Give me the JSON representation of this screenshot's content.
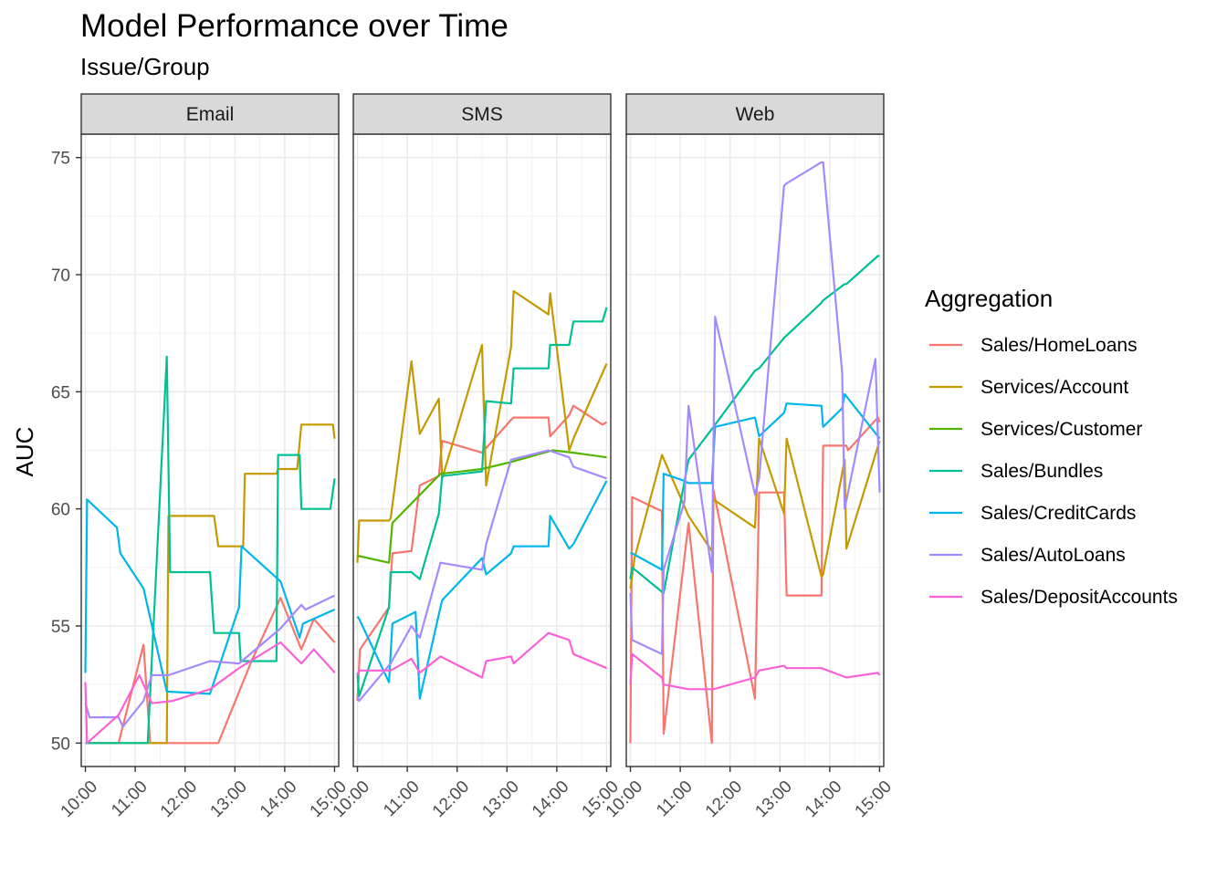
{
  "chart_data": {
    "type": "line",
    "title": "Model Performance over Time",
    "subtitle": "Issue/Group",
    "ylabel": "AUC",
    "xlabel": "",
    "ylim": [
      49,
      76
    ],
    "y_ticks": [
      50,
      55,
      60,
      65,
      70,
      75
    ],
    "x_range": [
      "09:55",
      "15:05"
    ],
    "x_ticks": [
      "10:00",
      "11:00",
      "12:00",
      "13:00",
      "14:00",
      "15:00"
    ],
    "grid": true,
    "legend": {
      "title": "Aggregation",
      "position": "right",
      "entries": [
        "Sales/HomeLoans",
        "Services/Account",
        "Services/Customer",
        "Sales/Bundles",
        "Sales/CreditCards",
        "Sales/AutoLoans",
        "Sales/DepositAccounts"
      ]
    },
    "colors": {
      "Sales/HomeLoans": "#F8766D",
      "Services/Account": "#C49A00",
      "Services/Customer": "#53B400",
      "Sales/Bundles": "#00C094",
      "Sales/CreditCards": "#00B6EB",
      "Sales/AutoLoans": "#A58AFF",
      "Sales/DepositAccounts": "#FB61D7"
    },
    "panels": [
      {
        "name": "Email",
        "series": [
          {
            "name": "Sales/HomeLoans",
            "x": [
              "10:00",
              "10:40",
              "11:10",
              "11:18",
              "11:50",
              "12:40",
              "13:20",
              "13:55",
              "14:20",
              "14:35",
              "15:00"
            ],
            "y": [
              50,
              50,
              54.2,
              50,
              50,
              50,
              53.5,
              56.2,
              54,
              55.3,
              54.3
            ]
          },
          {
            "name": "Services/Account",
            "x": [
              "10:00",
              "10:05",
              "11:25",
              "11:38",
              "11:40",
              "12:35",
              "12:40",
              "13:10",
              "13:12",
              "13:50",
              "13:52",
              "14:15",
              "14:20",
              "14:58",
              "15:00"
            ],
            "y": [
              50,
              50,
              50,
              50,
              59.7,
              59.7,
              58.4,
              58.4,
              61.5,
              61.5,
              61.7,
              61.7,
              63.6,
              63.6,
              63
            ]
          },
          {
            "name": "Sales/Bundles",
            "x": [
              "10:00",
              "11:15",
              "11:38",
              "11:42",
              "12:30",
              "12:35",
              "13:05",
              "13:07",
              "13:50",
              "13:52",
              "14:18",
              "14:20",
              "14:55",
              "15:00"
            ],
            "y": [
              50,
              50,
              66.5,
              57.3,
              57.3,
              54.7,
              54.7,
              53.5,
              53.5,
              62.3,
              62.3,
              60,
              60,
              61.3
            ]
          },
          {
            "name": "Sales/CreditCards",
            "x": [
              "10:00",
              "10:02",
              "10:38",
              "10:42",
              "11:10",
              "11:38",
              "12:30",
              "13:05",
              "13:08",
              "13:55",
              "14:18",
              "14:22",
              "15:00"
            ],
            "y": [
              53,
              60.4,
              59.2,
              58.1,
              56.6,
              52.2,
              52.1,
              55.8,
              58.4,
              56.9,
              54.5,
              55.1,
              55.7
            ]
          },
          {
            "name": "Sales/AutoLoans",
            "x": [
              "10:00",
              "10:05",
              "10:40",
              "10:45",
              "11:10",
              "11:20",
              "11:40",
              "12:30",
              "13:05",
              "13:55",
              "14:20",
              "14:25",
              "15:00"
            ],
            "y": [
              51.7,
              51.1,
              51.1,
              50.7,
              51.8,
              52.9,
              52.9,
              53.5,
              53.4,
              54.9,
              55.9,
              55.7,
              56.3
            ]
          },
          {
            "name": "Sales/DepositAccounts",
            "x": [
              "10:00",
              "10:02",
              "10:40",
              "11:05",
              "11:20",
              "11:45",
              "12:30",
              "13:05",
              "13:55",
              "14:20",
              "14:35",
              "14:58",
              "15:00"
            ],
            "y": [
              52.6,
              50,
              51.2,
              52.9,
              51.7,
              51.8,
              52.3,
              53.2,
              54.3,
              53.4,
              54,
              53.1,
              53
            ]
          }
        ]
      },
      {
        "name": "SMS",
        "series": [
          {
            "name": "Sales/HomeLoans",
            "x": [
              "10:00",
              "10:03",
              "10:38",
              "10:42",
              "11:05",
              "11:15",
              "11:38",
              "11:42",
              "12:30",
              "13:05",
              "13:08",
              "13:50",
              "13:52",
              "14:15",
              "14:20",
              "14:55",
              "15:00"
            ],
            "y": [
              51.8,
              54,
              55.8,
              58.1,
              58.2,
              61,
              61.4,
              62.9,
              62.4,
              63.8,
              63.9,
              63.9,
              63.1,
              64,
              64.4,
              63.6,
              63.7
            ]
          },
          {
            "name": "Services/Account",
            "x": [
              "10:00",
              "10:02",
              "10:38",
              "10:40",
              "11:05",
              "11:15",
              "11:38",
              "11:42",
              "12:30",
              "12:35",
              "13:05",
              "13:08",
              "13:50",
              "13:52",
              "14:15",
              "14:20",
              "15:00"
            ],
            "y": [
              57.7,
              59.5,
              59.5,
              59.6,
              66.3,
              63.2,
              64.7,
              61.3,
              67,
              61,
              66.9,
              69.3,
              68.3,
              69.2,
              62.5,
              63,
              66.2
            ]
          },
          {
            "name": "Services/Customer",
            "x": [
              "10:00",
              "10:38",
              "10:42",
              "11:40",
              "12:30",
              "13:05",
              "13:55",
              "14:20",
              "15:00"
            ],
            "y": [
              58,
              57.7,
              59.4,
              61.5,
              61.7,
              62,
              62.5,
              62.4,
              62.2
            ]
          },
          {
            "name": "Sales/Bundles",
            "x": [
              "10:00",
              "10:02",
              "10:38",
              "10:40",
              "11:05",
              "11:15",
              "11:38",
              "11:42",
              "12:30",
              "12:35",
              "13:05",
              "13:08",
              "13:50",
              "13:52",
              "14:15",
              "14:20",
              "14:55",
              "15:00"
            ],
            "y": [
              53,
              52,
              55.8,
              57.3,
              57.3,
              57,
              59.8,
              61.4,
              61.6,
              64.6,
              64.5,
              66,
              66,
              67,
              67,
              68,
              68,
              68.6
            ]
          },
          {
            "name": "Sales/CreditCards",
            "x": [
              "10:00",
              "10:02",
              "10:38",
              "10:42",
              "11:10",
              "11:15",
              "11:38",
              "11:42",
              "12:30",
              "12:35",
              "13:05",
              "13:08",
              "13:50",
              "13:52",
              "14:15",
              "14:20",
              "15:00"
            ],
            "y": [
              55.4,
              55.3,
              52.6,
              55.1,
              55.6,
              51.9,
              55.5,
              56.1,
              57.9,
              57.2,
              58.1,
              58.4,
              58.4,
              59.7,
              58.3,
              58.5,
              61.2
            ]
          },
          {
            "name": "Sales/AutoLoans",
            "x": [
              "10:00",
              "10:02",
              "10:40",
              "11:05",
              "11:15",
              "11:40",
              "12:30",
              "12:35",
              "13:05",
              "13:50",
              "14:15",
              "14:20",
              "15:00"
            ],
            "y": [
              52,
              51.8,
              53.4,
              55,
              54.5,
              57.7,
              57.4,
              58.5,
              62.1,
              62.5,
              62.2,
              61.8,
              61.3
            ]
          },
          {
            "name": "Sales/DepositAccounts",
            "x": [
              "10:00",
              "10:02",
              "10:40",
              "11:05",
              "11:15",
              "11:40",
              "12:30",
              "12:35",
              "13:05",
              "13:08",
              "13:50",
              "14:15",
              "14:20",
              "15:00"
            ],
            "y": [
              52.9,
              53.1,
              53.1,
              53.6,
              53,
              53.7,
              52.8,
              53.5,
              53.7,
              53.4,
              54.7,
              54.4,
              53.8,
              53.2
            ]
          }
        ]
      },
      {
        "name": "Web",
        "series": [
          {
            "name": "Sales/HomeLoans",
            "x": [
              "10:00",
              "10:02",
              "10:38",
              "10:40",
              "11:10",
              "11:38",
              "11:40",
              "12:30",
              "12:35",
              "13:05",
              "13:08",
              "13:50",
              "13:52",
              "14:20",
              "14:22",
              "14:58",
              "15:00"
            ],
            "y": [
              50,
              60.5,
              59.9,
              50.4,
              59.4,
              50,
              60.8,
              51.9,
              60.7,
              60.7,
              56.3,
              56.3,
              62.7,
              62.7,
              62.5,
              63.9,
              63.7
            ]
          },
          {
            "name": "Services/Account",
            "x": [
              "10:00",
              "10:05",
              "10:38",
              "11:10",
              "11:38",
              "11:40",
              "12:30",
              "12:35",
              "13:05",
              "13:08",
              "13:50",
              "13:52",
              "14:18",
              "14:20",
              "15:00"
            ],
            "y": [
              56.6,
              57.9,
              62.3,
              59.7,
              58.2,
              60.4,
              59.2,
              63,
              59.8,
              63,
              57.1,
              57.2,
              62.1,
              58.3,
              62.9
            ]
          },
          {
            "name": "Sales/Bundles",
            "x": [
              "10:00",
              "10:02",
              "10:40",
              "11:10",
              "11:40",
              "12:30",
              "12:35",
              "13:05",
              "13:08",
              "13:50",
              "13:52",
              "14:18",
              "14:20",
              "14:58",
              "15:00"
            ],
            "y": [
              57,
              57.5,
              56.4,
              62.1,
              63.5,
              65.9,
              66,
              67.3,
              67.4,
              68.8,
              68.9,
              69.6,
              69.6,
              70.8,
              70.8
            ]
          },
          {
            "name": "Sales/CreditCards",
            "x": [
              "10:00",
              "10:02",
              "10:38",
              "10:40",
              "11:05",
              "11:10",
              "11:38",
              "11:42",
              "12:30",
              "12:35",
              "13:05",
              "13:08",
              "13:50",
              "13:52",
              "14:15",
              "14:18",
              "14:58",
              "15:00"
            ],
            "y": [
              58.1,
              58.1,
              57.4,
              61.5,
              61.2,
              61.1,
              61.1,
              63.5,
              63.9,
              63.1,
              64.1,
              64.5,
              64.4,
              63.5,
              64.3,
              64.9,
              63.1,
              63
            ]
          },
          {
            "name": "Sales/AutoLoans",
            "x": [
              "10:00",
              "10:02",
              "10:38",
              "10:40",
              "11:05",
              "11:10",
              "11:38",
              "11:42",
              "12:30",
              "12:35",
              "13:05",
              "13:08",
              "13:50",
              "13:52",
              "14:15",
              "14:18",
              "14:55",
              "15:00"
            ],
            "y": [
              56.4,
              54.4,
              53.8,
              57.4,
              60.3,
              64.4,
              57.3,
              68.2,
              60.6,
              61.3,
              73.8,
              73.9,
              74.8,
              74.8,
              65.8,
              60,
              66.4,
              60.7
            ]
          },
          {
            "name": "Sales/DepositAccounts",
            "x": [
              "10:00",
              "10:02",
              "10:38",
              "10:40",
              "11:10",
              "11:40",
              "12:30",
              "12:35",
              "13:05",
              "13:08",
              "13:50",
              "14:20",
              "14:58",
              "15:00"
            ],
            "y": [
              52.5,
              53.8,
              52.8,
              52.5,
              52.3,
              52.3,
              52.8,
              53.1,
              53.3,
              53.2,
              53.2,
              52.8,
              53,
              52.9
            ]
          }
        ]
      }
    ]
  }
}
